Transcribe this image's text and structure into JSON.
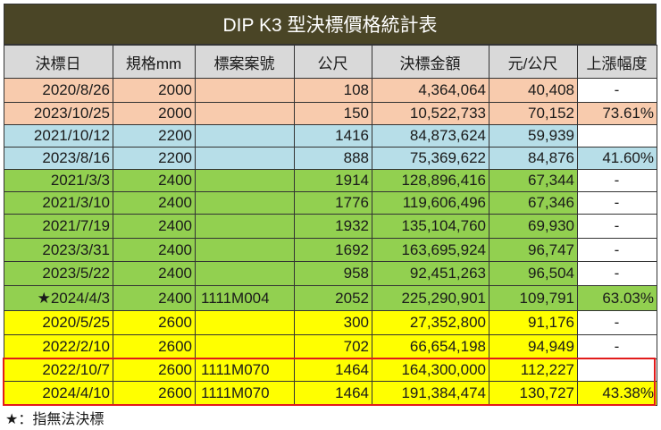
{
  "title": "DIP K3 型決標價格統計表",
  "headers": [
    "決標日",
    "規格mm",
    "標案案號",
    "公尺",
    "決標金額",
    "元/公尺",
    "上漲幅度"
  ],
  "colors": {
    "title_bg": "#4a4526",
    "header_bg": "#d9d9d9",
    "orange": "#f8cbad",
    "blue": "#b7dee8",
    "green": "#92d050",
    "yellow": "#ffff00",
    "white": "#ffffff",
    "highlight_border": "#e21b1b"
  },
  "rows": [
    {
      "cells": [
        "2020/8/26",
        "2000",
        "",
        "108",
        "4,364,064",
        "40,408",
        "-"
      ],
      "group": "orange",
      "last": "white"
    },
    {
      "cells": [
        "2023/10/25",
        "2000",
        "",
        "150",
        "10,522,733",
        "70,152",
        "73.61%"
      ],
      "group": "orange",
      "last": "orange"
    },
    {
      "cells": [
        "2021/10/12",
        "2200",
        "",
        "1416",
        "84,873,624",
        "59,939",
        ""
      ],
      "group": "blue",
      "last": "white"
    },
    {
      "cells": [
        "2023/8/16",
        "2200",
        "",
        "888",
        "75,369,622",
        "84,876",
        "41.60%"
      ],
      "group": "blue",
      "last": "blue"
    },
    {
      "cells": [
        "2021/3/3",
        "2400",
        "",
        "1914",
        "128,896,416",
        "67,344",
        "-"
      ],
      "group": "green",
      "last": "white"
    },
    {
      "cells": [
        "2021/3/10",
        "2400",
        "",
        "1776",
        "119,606,496",
        "67,346",
        "-"
      ],
      "group": "green",
      "last": "white"
    },
    {
      "cells": [
        "2021/7/19",
        "2400",
        "",
        "1932",
        "135,104,760",
        "69,930",
        "-"
      ],
      "group": "green",
      "last": "white"
    },
    {
      "cells": [
        "2023/3/31",
        "2400",
        "",
        "1692",
        "163,695,924",
        "96,747",
        "-"
      ],
      "group": "green",
      "last": "white"
    },
    {
      "cells": [
        "2023/5/22",
        "2400",
        "",
        "958",
        "92,451,263",
        "96,504",
        "-"
      ],
      "group": "green",
      "last": "white"
    },
    {
      "cells": [
        "★2024/4/3",
        "2400",
        "1111M004",
        "2052",
        "225,290,901",
        "109,791",
        "63.03%"
      ],
      "group": "green",
      "last": "green"
    },
    {
      "cells": [
        "2020/5/25",
        "2600",
        "",
        "300",
        "27,352,800",
        "91,176",
        "-"
      ],
      "group": "yellow",
      "last": "white"
    },
    {
      "cells": [
        "2022/2/10",
        "2600",
        "",
        "702",
        "66,654,198",
        "94,949",
        "-"
      ],
      "group": "yellow",
      "last": "white"
    },
    {
      "cells": [
        "2022/10/7",
        "2600",
        "1111M070",
        "1464",
        "164,300,000",
        "112,227",
        ""
      ],
      "group": "yellow",
      "last": "white",
      "highlighted": true
    },
    {
      "cells": [
        "2024/4/10",
        "2600",
        "1111M070",
        "1464",
        "191,384,474",
        "130,727",
        "43.38%"
      ],
      "group": "yellow",
      "last": "yellow",
      "highlighted": true
    }
  ],
  "footnote": "★：指無法決標"
}
